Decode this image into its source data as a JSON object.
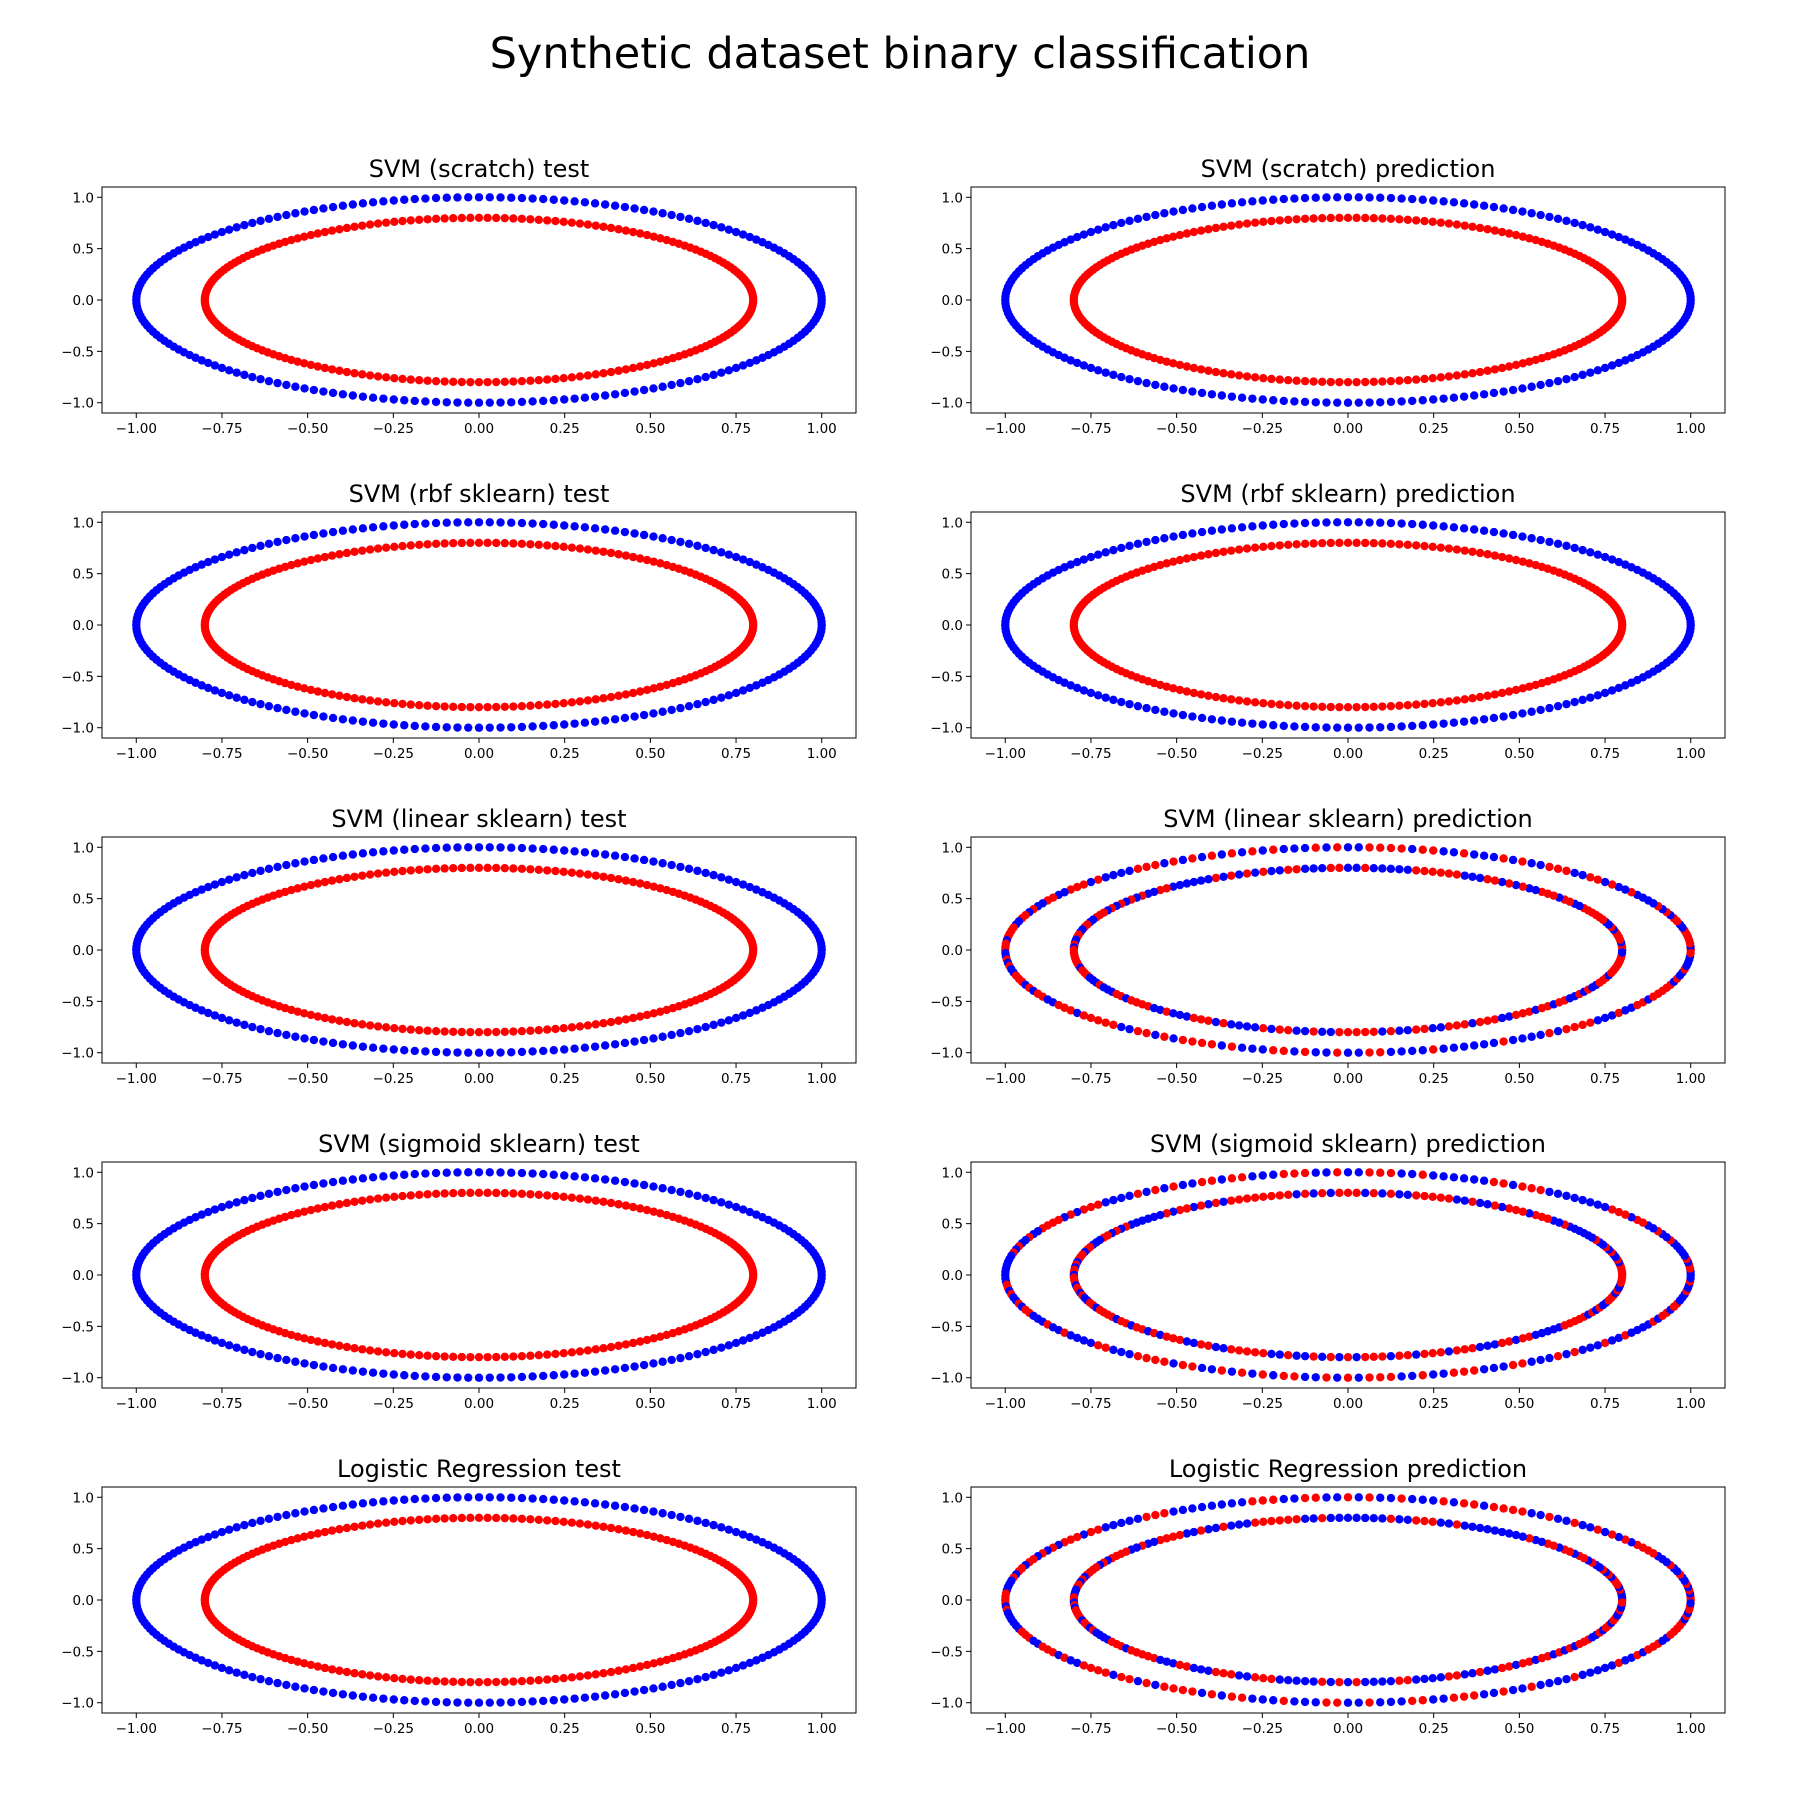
{
  "figure": {
    "title": "Synthetic dataset binary classification"
  },
  "colors": {
    "class_outer": "#0000ff",
    "class_inner": "#ff0000"
  },
  "chart_data": [
    {
      "type": "scatter",
      "title": "SVM (scratch) test",
      "xlim": [
        -1.1,
        1.1
      ],
      "ylim": [
        -1.1,
        1.1
      ],
      "xticks": [
        -1.0,
        -0.75,
        -0.5,
        -0.25,
        0.0,
        0.25,
        0.5,
        0.75,
        1.0
      ],
      "yticks": [
        -1.0,
        -0.5,
        0.0,
        0.5,
        1.0
      ],
      "points_per_circle": 200,
      "series": [
        {
          "radius": 1.0,
          "color": "blue"
        },
        {
          "radius": 0.8,
          "color": "red"
        }
      ]
    },
    {
      "type": "scatter",
      "title": "SVM (scratch) prediction",
      "xlim": [
        -1.1,
        1.1
      ],
      "ylim": [
        -1.1,
        1.1
      ],
      "xticks": [
        -1.0,
        -0.75,
        -0.5,
        -0.25,
        0.0,
        0.25,
        0.5,
        0.75,
        1.0
      ],
      "yticks": [
        -1.0,
        -0.5,
        0.0,
        0.5,
        1.0
      ],
      "points_per_circle": 200,
      "series": [
        {
          "radius": 1.0,
          "color": "blue"
        },
        {
          "radius": 0.8,
          "color": "red"
        }
      ]
    },
    {
      "type": "scatter",
      "title": "SVM (rbf sklearn) test",
      "xlim": [
        -1.1,
        1.1
      ],
      "ylim": [
        -1.1,
        1.1
      ],
      "xticks": [
        -1.0,
        -0.75,
        -0.5,
        -0.25,
        0.0,
        0.25,
        0.5,
        0.75,
        1.0
      ],
      "yticks": [
        -1.0,
        -0.5,
        0.0,
        0.5,
        1.0
      ],
      "points_per_circle": 200,
      "series": [
        {
          "radius": 1.0,
          "color": "blue"
        },
        {
          "radius": 0.8,
          "color": "red"
        }
      ]
    },
    {
      "type": "scatter",
      "title": "SVM (rbf sklearn) prediction",
      "xlim": [
        -1.1,
        1.1
      ],
      "ylim": [
        -1.1,
        1.1
      ],
      "xticks": [
        -1.0,
        -0.75,
        -0.5,
        -0.25,
        0.0,
        0.25,
        0.5,
        0.75,
        1.0
      ],
      "yticks": [
        -1.0,
        -0.5,
        0.0,
        0.5,
        1.0
      ],
      "points_per_circle": 200,
      "series": [
        {
          "radius": 1.0,
          "color": "blue"
        },
        {
          "radius": 0.8,
          "color": "red"
        }
      ]
    },
    {
      "type": "scatter",
      "title": "SVM (linear sklearn) test",
      "xlim": [
        -1.1,
        1.1
      ],
      "ylim": [
        -1.1,
        1.1
      ],
      "xticks": [
        -1.0,
        -0.75,
        -0.5,
        -0.25,
        0.0,
        0.25,
        0.5,
        0.75,
        1.0
      ],
      "yticks": [
        -1.0,
        -0.5,
        0.0,
        0.5,
        1.0
      ],
      "points_per_circle": 200,
      "series": [
        {
          "radius": 1.0,
          "color": "blue"
        },
        {
          "radius": 0.8,
          "color": "red"
        }
      ]
    },
    {
      "type": "scatter",
      "title": "SVM (linear sklearn) prediction",
      "xlim": [
        -1.1,
        1.1
      ],
      "ylim": [
        -1.1,
        1.1
      ],
      "xticks": [
        -1.0,
        -0.75,
        -0.5,
        -0.25,
        0.0,
        0.25,
        0.5,
        0.75,
        1.0
      ],
      "yticks": [
        -1.0,
        -0.5,
        0.0,
        0.5,
        1.0
      ],
      "points_per_circle": 200,
      "series": [
        {
          "radius": 1.0,
          "color": "mixed"
        },
        {
          "radius": 0.8,
          "color": "mixed"
        }
      ]
    },
    {
      "type": "scatter",
      "title": "SVM (sigmoid sklearn) test",
      "xlim": [
        -1.1,
        1.1
      ],
      "ylim": [
        -1.1,
        1.1
      ],
      "xticks": [
        -1.0,
        -0.75,
        -0.5,
        -0.25,
        0.0,
        0.25,
        0.5,
        0.75,
        1.0
      ],
      "yticks": [
        -1.0,
        -0.5,
        0.0,
        0.5,
        1.0
      ],
      "points_per_circle": 200,
      "series": [
        {
          "radius": 1.0,
          "color": "blue"
        },
        {
          "radius": 0.8,
          "color": "red"
        }
      ]
    },
    {
      "type": "scatter",
      "title": "SVM (sigmoid sklearn) prediction",
      "xlim": [
        -1.1,
        1.1
      ],
      "ylim": [
        -1.1,
        1.1
      ],
      "xticks": [
        -1.0,
        -0.75,
        -0.5,
        -0.25,
        0.0,
        0.25,
        0.5,
        0.75,
        1.0
      ],
      "yticks": [
        -1.0,
        -0.5,
        0.0,
        0.5,
        1.0
      ],
      "points_per_circle": 200,
      "series": [
        {
          "radius": 1.0,
          "color": "mixed"
        },
        {
          "radius": 0.8,
          "color": "mixed"
        }
      ]
    },
    {
      "type": "scatter",
      "title": "Logistic Regression test",
      "xlim": [
        -1.1,
        1.1
      ],
      "ylim": [
        -1.1,
        1.1
      ],
      "xticks": [
        -1.0,
        -0.75,
        -0.5,
        -0.25,
        0.0,
        0.25,
        0.5,
        0.75,
        1.0
      ],
      "yticks": [
        -1.0,
        -0.5,
        0.0,
        0.5,
        1.0
      ],
      "points_per_circle": 200,
      "series": [
        {
          "radius": 1.0,
          "color": "blue"
        },
        {
          "radius": 0.8,
          "color": "red"
        }
      ]
    },
    {
      "type": "scatter",
      "title": "Logistic Regression prediction",
      "xlim": [
        -1.1,
        1.1
      ],
      "ylim": [
        -1.1,
        1.1
      ],
      "xticks": [
        -1.0,
        -0.75,
        -0.5,
        -0.25,
        0.0,
        0.25,
        0.5,
        0.75,
        1.0
      ],
      "yticks": [
        -1.0,
        -0.5,
        0.0,
        0.5,
        1.0
      ],
      "points_per_circle": 200,
      "series": [
        {
          "radius": 1.0,
          "color": "mixed"
        },
        {
          "radius": 0.8,
          "color": "mixed"
        }
      ]
    }
  ]
}
